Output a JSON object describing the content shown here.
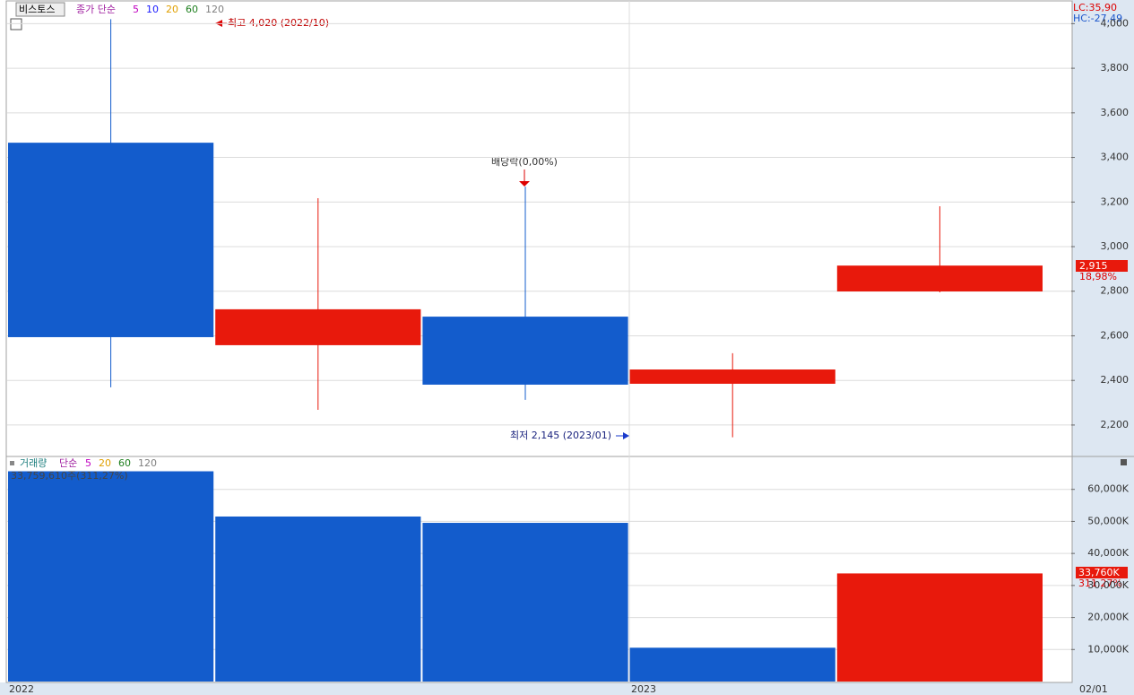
{
  "chart_data": [
    {
      "type": "candlestick",
      "title": "비스토스",
      "ma_label": "종가 단순",
      "ma_legend": [
        {
          "label": "5",
          "color": "#c000c0"
        },
        {
          "label": "10",
          "color": "#1a1aff"
        },
        {
          "label": "20",
          "color": "#e0a000"
        },
        {
          "label": "60",
          "color": "#208020"
        },
        {
          "label": "120",
          "color": "#808080"
        }
      ],
      "open": [
        3466,
        2558,
        2686,
        2385,
        2799
      ],
      "high": [
        4020,
        3217,
        3269,
        2522,
        3181
      ],
      "low": [
        2369,
        2268,
        2313,
        2145,
        2795
      ],
      "close": [
        2594,
        2719,
        2381,
        2449,
        2915
      ],
      "up_color": "#e8190c",
      "down_color": "#135ccc",
      "ylim": [
        2063,
        4098
      ],
      "yticks": [
        {
          "value": 2200,
          "label": "2,200"
        },
        {
          "value": 2400,
          "label": "2,400"
        },
        {
          "value": 2600,
          "label": "2,600"
        },
        {
          "value": 2800,
          "label": "2,800"
        },
        {
          "value": 3000,
          "label": "3,000"
        },
        {
          "value": 3200,
          "label": "3,200"
        },
        {
          "value": 3400,
          "label": "3,400"
        },
        {
          "value": 3600,
          "label": "3,600"
        },
        {
          "value": 3800,
          "label": "3,800"
        },
        {
          "value": 4000,
          "label": "4,000"
        }
      ],
      "grid": true,
      "annotations": {
        "high": "최고 4,020 (2022/10)",
        "dividend": "배당락(0,00%)",
        "low": "최저 2,145 (2023/01)",
        "lc": "LC:35,90",
        "hc": "HC:-27,49",
        "last_price": "2,915",
        "last_change": "18,98%"
      }
    },
    {
      "type": "bar",
      "title": "거래량",
      "ma_label": "단순",
      "ma_legend": [
        {
          "label": "5",
          "color": "#c000c0"
        },
        {
          "label": "20",
          "color": "#e0a000"
        },
        {
          "label": "60",
          "color": "#208020"
        },
        {
          "label": "120",
          "color": "#808080"
        }
      ],
      "values": [
        65650,
        51525,
        49550,
        10565,
        33760
      ],
      "colors": [
        "#135ccc",
        "#135ccc",
        "#135ccc",
        "#135ccc",
        "#e8190c"
      ],
      "ylim": [
        0,
        70000
      ],
      "yticks": [
        {
          "value": 10000,
          "label": "10,000K"
        },
        {
          "value": 20000,
          "label": "20,000K"
        },
        {
          "value": 30000,
          "label": "30,000K"
        },
        {
          "value": 40000,
          "label": "40,000K"
        },
        {
          "value": 50000,
          "label": "50,000K"
        },
        {
          "value": 60000,
          "label": "60,000K"
        }
      ],
      "grid": true,
      "annotations": {
        "first": "33,759,610주(311,27%)",
        "last_value": "33,760K",
        "last_change": "311,27%"
      }
    }
  ],
  "time_axis": [
    "2022",
    "2023",
    "02/01"
  ]
}
